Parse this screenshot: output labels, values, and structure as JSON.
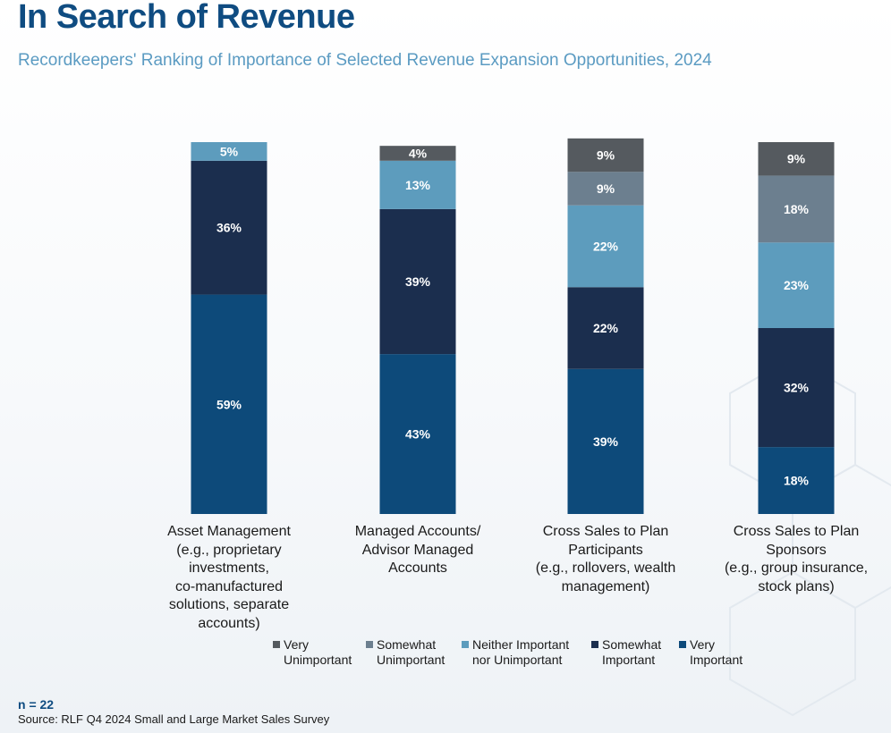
{
  "header": {
    "title": "In Search of Revenue",
    "subtitle": "Recordkeepers' Ranking of Importance of Selected Revenue Expansion Opportunities, 2024"
  },
  "chart_data": {
    "type": "bar",
    "stacked": true,
    "orientation": "vertical",
    "grid": false,
    "legend_position": "bottom",
    "categories": [
      "Asset Management\n(e.g., proprietary\ninvestments,\nco-manufactured\nsolutions, separate\naccounts)",
      "Managed Accounts/\nAdvisor Managed\nAccounts",
      "Cross Sales to Plan\nParticipants\n(e.g., rollovers, wealth\nmanagement)",
      "Cross Sales to Plan\nSponsors\n(e.g., group insurance,\nstock plans)"
    ],
    "series": [
      {
        "name": "Very Important",
        "legend": "Very\nImportant",
        "color": "#0d4a7a",
        "values": [
          59,
          43,
          39,
          18
        ]
      },
      {
        "name": "Somewhat Important",
        "legend": "Somewhat\nImportant",
        "color": "#1b2e4e",
        "values": [
          36,
          39,
          22,
          32
        ]
      },
      {
        "name": "Neither Important nor Unimportant",
        "legend": "Neither Important\nnor Unimportant",
        "color": "#5d9cbd",
        "values": [
          5,
          13,
          22,
          23
        ]
      },
      {
        "name": "Somewhat Unimportant",
        "legend": "Somewhat\nUnimportant",
        "color": "#6c7f8f",
        "values": [
          0,
          0,
          9,
          18
        ]
      },
      {
        "name": "Very Unimportant",
        "legend": "Very\nUnimportant",
        "color": "#555a5f",
        "values": [
          0,
          4,
          9,
          9
        ]
      }
    ],
    "legend_order": [
      4,
      3,
      2,
      1,
      0
    ],
    "ylim": [
      0,
      100
    ],
    "value_suffix": "%"
  },
  "footer": {
    "n": "n = 22",
    "source": "Source: RLF Q4 2024 Small and Large Market Sales Survey"
  }
}
